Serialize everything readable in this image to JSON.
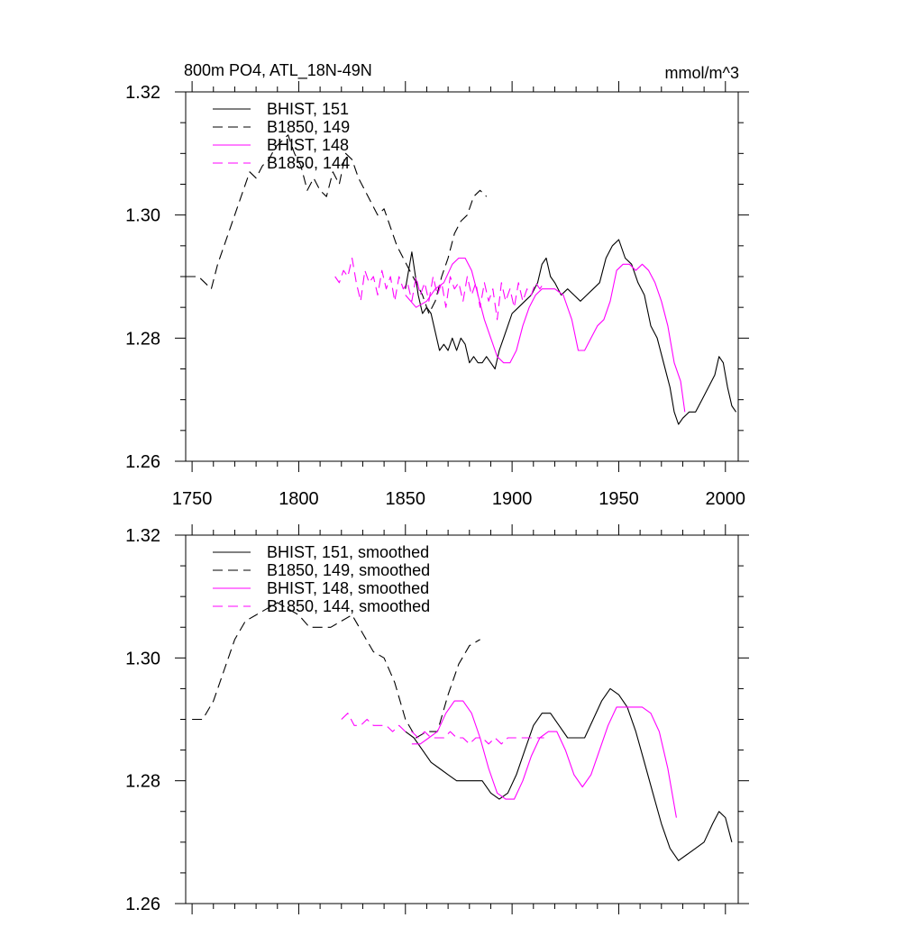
{
  "figure": {
    "title": "800m PO4, ATL_18N-49N",
    "units": "mmol/m^3"
  },
  "chart_data": [
    {
      "type": "line",
      "panel": "top",
      "xlim": [
        1747,
        2006
      ],
      "ylim": [
        1.26,
        1.32
      ],
      "xticks": [
        1750,
        1800,
        1850,
        1900,
        1950,
        2000
      ],
      "yticks": [
        1.26,
        1.28,
        1.3,
        1.32
      ],
      "ytick_labels": [
        "1.26",
        "1.28",
        "1.30",
        "1.32"
      ],
      "show_xtick_labels": true,
      "legend_position": "top-left",
      "series": [
        {
          "name": "BHIST, 151",
          "color": "#000000",
          "dash": "solid",
          "x": [
            1850,
            1853,
            1856,
            1858,
            1860,
            1862,
            1864,
            1866,
            1868,
            1870,
            1872,
            1874,
            1876,
            1878,
            1880,
            1882,
            1884,
            1886,
            1888,
            1890,
            1892,
            1894,
            1896,
            1898,
            1900,
            1903,
            1906,
            1909,
            1912,
            1914,
            1916,
            1918,
            1920,
            1923,
            1926,
            1929,
            1932,
            1935,
            1938,
            1941,
            1944,
            1947,
            1950,
            1953,
            1956,
            1959,
            1962,
            1965,
            1968,
            1971,
            1974,
            1976,
            1978,
            1980,
            1983,
            1986,
            1989,
            1992,
            1995,
            1997,
            1999,
            2001,
            2003,
            2005
          ],
          "y": [
            1.288,
            1.294,
            1.287,
            1.284,
            1.285,
            1.284,
            1.281,
            1.278,
            1.279,
            1.278,
            1.28,
            1.278,
            1.28,
            1.279,
            1.276,
            1.277,
            1.276,
            1.276,
            1.277,
            1.276,
            1.275,
            1.278,
            1.28,
            1.282,
            1.284,
            1.285,
            1.286,
            1.287,
            1.289,
            1.292,
            1.293,
            1.29,
            1.289,
            1.287,
            1.288,
            1.287,
            1.286,
            1.287,
            1.288,
            1.289,
            1.293,
            1.295,
            1.296,
            1.293,
            1.292,
            1.289,
            1.287,
            1.282,
            1.28,
            1.276,
            1.272,
            1.268,
            1.266,
            1.267,
            1.268,
            1.268,
            1.27,
            1.272,
            1.274,
            1.277,
            1.276,
            1.272,
            1.269,
            1.268
          ]
        },
        {
          "name": "B1850, 149",
          "color": "#000000",
          "dash": "dashed",
          "x": [
            1747,
            1750,
            1753,
            1756,
            1759,
            1762,
            1765,
            1768,
            1771,
            1774,
            1777,
            1780,
            1783,
            1786,
            1789,
            1792,
            1795,
            1798,
            1801,
            1804,
            1807,
            1810,
            1813,
            1816,
            1819,
            1822,
            1825,
            1828,
            1831,
            1834,
            1837,
            1840,
            1843,
            1846,
            1849,
            1852,
            1855,
            1858,
            1861,
            1864,
            1867,
            1870,
            1873,
            1876,
            1879,
            1882,
            1885,
            1888
          ],
          "y": [
            1.29,
            1.29,
            1.29,
            1.289,
            1.288,
            1.292,
            1.295,
            1.298,
            1.301,
            1.304,
            1.307,
            1.306,
            1.308,
            1.309,
            1.311,
            1.312,
            1.313,
            1.31,
            1.308,
            1.304,
            1.306,
            1.304,
            1.303,
            1.307,
            1.305,
            1.31,
            1.309,
            1.306,
            1.304,
            1.302,
            1.3,
            1.301,
            1.298,
            1.295,
            1.293,
            1.291,
            1.289,
            1.287,
            1.284,
            1.286,
            1.29,
            1.293,
            1.297,
            1.299,
            1.3,
            1.303,
            1.304,
            1.303
          ]
        },
        {
          "name": "BHIST, 148",
          "color": "#ff00ff",
          "dash": "solid",
          "x": [
            1850,
            1855,
            1860,
            1864,
            1868,
            1872,
            1875,
            1878,
            1881,
            1884,
            1887,
            1890,
            1893,
            1896,
            1899,
            1902,
            1905,
            1908,
            1911,
            1914,
            1917,
            1920,
            1924,
            1928,
            1931,
            1934,
            1937,
            1940,
            1943,
            1946,
            1949,
            1952,
            1955,
            1958,
            1961,
            1964,
            1967,
            1970,
            1973,
            1976,
            1979,
            1981
          ],
          "y": [
            1.287,
            1.285,
            1.286,
            1.288,
            1.289,
            1.292,
            1.293,
            1.293,
            1.291,
            1.287,
            1.283,
            1.28,
            1.277,
            1.276,
            1.276,
            1.278,
            1.282,
            1.285,
            1.287,
            1.288,
            1.288,
            1.288,
            1.287,
            1.283,
            1.278,
            1.278,
            1.28,
            1.282,
            1.283,
            1.286,
            1.291,
            1.292,
            1.292,
            1.291,
            1.292,
            1.291,
            1.289,
            1.286,
            1.282,
            1.276,
            1.273,
            1.268
          ]
        },
        {
          "name": "B1850, 144",
          "color": "#ff00ff",
          "dash": "dashed",
          "x": [
            1817,
            1819,
            1821,
            1823,
            1825,
            1827,
            1829,
            1831,
            1833,
            1835,
            1837,
            1839,
            1841,
            1843,
            1845,
            1847,
            1849,
            1851,
            1853,
            1855,
            1857,
            1859,
            1861,
            1863,
            1865,
            1867,
            1869,
            1871,
            1873,
            1875,
            1877,
            1879,
            1881,
            1883,
            1885,
            1887,
            1889,
            1891,
            1893,
            1895,
            1897,
            1899,
            1901,
            1903,
            1905,
            1907,
            1909,
            1911,
            1913,
            1915
          ],
          "y": [
            1.29,
            1.289,
            1.291,
            1.29,
            1.293,
            1.289,
            1.286,
            1.291,
            1.289,
            1.29,
            1.287,
            1.291,
            1.288,
            1.29,
            1.286,
            1.29,
            1.288,
            1.289,
            1.286,
            1.29,
            1.287,
            1.289,
            1.286,
            1.29,
            1.287,
            1.289,
            1.285,
            1.29,
            1.288,
            1.289,
            1.286,
            1.29,
            1.287,
            1.289,
            1.285,
            1.289,
            1.286,
            1.288,
            1.283,
            1.289,
            1.286,
            1.288,
            1.285,
            1.289,
            1.286,
            1.288,
            1.287,
            1.289,
            1.288,
            1.289
          ]
        }
      ]
    },
    {
      "type": "line",
      "panel": "bottom",
      "xlim": [
        1747,
        2006
      ],
      "ylim": [
        1.26,
        1.32
      ],
      "xticks": [
        1750,
        1800,
        1850,
        1900,
        1950,
        2000
      ],
      "yticks": [
        1.26,
        1.28,
        1.3,
        1.32
      ],
      "ytick_labels": [
        "1.26",
        "1.28",
        "1.30",
        "1.32"
      ],
      "show_xtick_labels": false,
      "legend_position": "top-left",
      "series": [
        {
          "name": "BHIST, 151, smoothed",
          "color": "#000000",
          "dash": "solid",
          "x": [
            1850,
            1854,
            1858,
            1862,
            1866,
            1870,
            1874,
            1878,
            1882,
            1886,
            1890,
            1894,
            1898,
            1902,
            1906,
            1910,
            1914,
            1918,
            1922,
            1926,
            1930,
            1934,
            1938,
            1942,
            1946,
            1950,
            1954,
            1958,
            1962,
            1966,
            1970,
            1974,
            1978,
            1982,
            1986,
            1990,
            1994,
            1997,
            2000,
            2003
          ],
          "y": [
            1.288,
            1.287,
            1.285,
            1.283,
            1.282,
            1.281,
            1.28,
            1.28,
            1.28,
            1.28,
            1.278,
            1.277,
            1.278,
            1.281,
            1.285,
            1.289,
            1.291,
            1.291,
            1.289,
            1.287,
            1.287,
            1.287,
            1.29,
            1.293,
            1.295,
            1.294,
            1.292,
            1.288,
            1.283,
            1.278,
            1.273,
            1.269,
            1.267,
            1.268,
            1.269,
            1.27,
            1.273,
            1.275,
            1.274,
            1.27
          ]
        },
        {
          "name": "B1850, 149, smoothed",
          "color": "#000000",
          "dash": "dashed",
          "x": [
            1750,
            1755,
            1760,
            1765,
            1770,
            1775,
            1780,
            1785,
            1790,
            1795,
            1800,
            1805,
            1810,
            1815,
            1820,
            1825,
            1830,
            1835,
            1840,
            1845,
            1850,
            1855,
            1860,
            1865,
            1870,
            1875,
            1880,
            1885
          ],
          "y": [
            1.29,
            1.29,
            1.293,
            1.298,
            1.303,
            1.306,
            1.307,
            1.308,
            1.309,
            1.308,
            1.307,
            1.305,
            1.305,
            1.305,
            1.306,
            1.307,
            1.304,
            1.301,
            1.3,
            1.296,
            1.29,
            1.287,
            1.288,
            1.288,
            1.294,
            1.299,
            1.302,
            1.303
          ]
        },
        {
          "name": "BHIST, 148, smoothed",
          "color": "#ff00ff",
          "dash": "solid",
          "x": [
            1853,
            1857,
            1861,
            1865,
            1869,
            1873,
            1877,
            1881,
            1885,
            1889,
            1893,
            1897,
            1901,
            1905,
            1909,
            1913,
            1917,
            1921,
            1925,
            1929,
            1933,
            1937,
            1941,
            1945,
            1949,
            1953,
            1957,
            1961,
            1965,
            1969,
            1973,
            1977
          ],
          "y": [
            1.286,
            1.286,
            1.287,
            1.288,
            1.291,
            1.293,
            1.293,
            1.291,
            1.287,
            1.282,
            1.278,
            1.277,
            1.277,
            1.28,
            1.284,
            1.287,
            1.288,
            1.288,
            1.285,
            1.281,
            1.279,
            1.281,
            1.285,
            1.289,
            1.292,
            1.292,
            1.292,
            1.292,
            1.291,
            1.288,
            1.282,
            1.274
          ]
        },
        {
          "name": "B1850, 144, smoothed",
          "color": "#ff00ff",
          "dash": "dashed",
          "x": [
            1820,
            1823,
            1826,
            1829,
            1832,
            1835,
            1838,
            1841,
            1844,
            1847,
            1850,
            1853,
            1856,
            1859,
            1862,
            1865,
            1868,
            1871,
            1874,
            1877,
            1880,
            1883,
            1886,
            1889,
            1892,
            1895,
            1898,
            1901,
            1904,
            1907,
            1910,
            1913,
            1915
          ],
          "y": [
            1.29,
            1.291,
            1.289,
            1.289,
            1.29,
            1.289,
            1.289,
            1.289,
            1.288,
            1.289,
            1.288,
            1.288,
            1.287,
            1.288,
            1.287,
            1.287,
            1.287,
            1.288,
            1.287,
            1.287,
            1.286,
            1.287,
            1.287,
            1.286,
            1.287,
            1.286,
            1.287,
            1.287,
            1.287,
            1.287,
            1.287,
            1.287,
            1.287
          ]
        }
      ]
    }
  ]
}
